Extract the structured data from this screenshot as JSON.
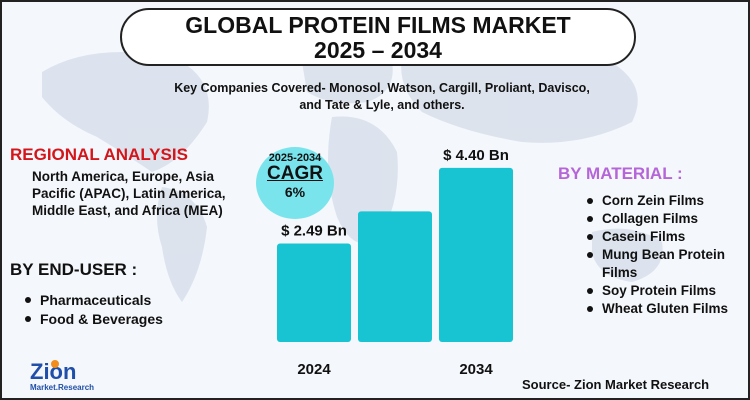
{
  "title": {
    "line1": "GLOBAL PROTEIN FILMS MARKET",
    "line2": "2025 – 2034"
  },
  "subtitle": {
    "line1": "Key Companies Covered- Monosol, Watson, Cargill, Proliant, Davisco,",
    "line2": "and Tate & Lyle, and others."
  },
  "regional": {
    "heading": "REGIONAL ANALYSIS",
    "text": "North America, Europe, Asia Pacific (APAC), Latin America, Middle East, and Africa (MEA)"
  },
  "end_user": {
    "heading": "BY END-USER :",
    "items": [
      "Pharmaceuticals",
      "Food & Beverages"
    ]
  },
  "material": {
    "heading": "BY MATERIAL :",
    "items": [
      "Corn Zein Films",
      "Collagen Films",
      "Casein Films",
      "Mung Bean Protein Films",
      "Soy Protein Films",
      "Wheat Gluten Films"
    ]
  },
  "cagr": {
    "years": "2025-2034",
    "label": "CAGR",
    "value": "6%"
  },
  "chart_data": {
    "type": "bar",
    "categories": [
      "2024",
      "",
      "2034"
    ],
    "values": [
      2.49,
      3.3,
      4.4
    ],
    "data_labels": [
      "$ 2.49 Bn",
      "",
      "$ 4.40 Bn"
    ],
    "unit": "USD Billion",
    "title": "",
    "ylim": [
      0,
      4.8
    ],
    "bar_color": "#19c4d2"
  },
  "logo": {
    "name": "Zion",
    "tagline": "Market.Research"
  },
  "source": "Source- Zion Market Research",
  "colors": {
    "accent_red": "#d4161b",
    "accent_purple": "#b565d8",
    "bar": "#19c4d2",
    "cagr_bg": "#79e4ec"
  }
}
